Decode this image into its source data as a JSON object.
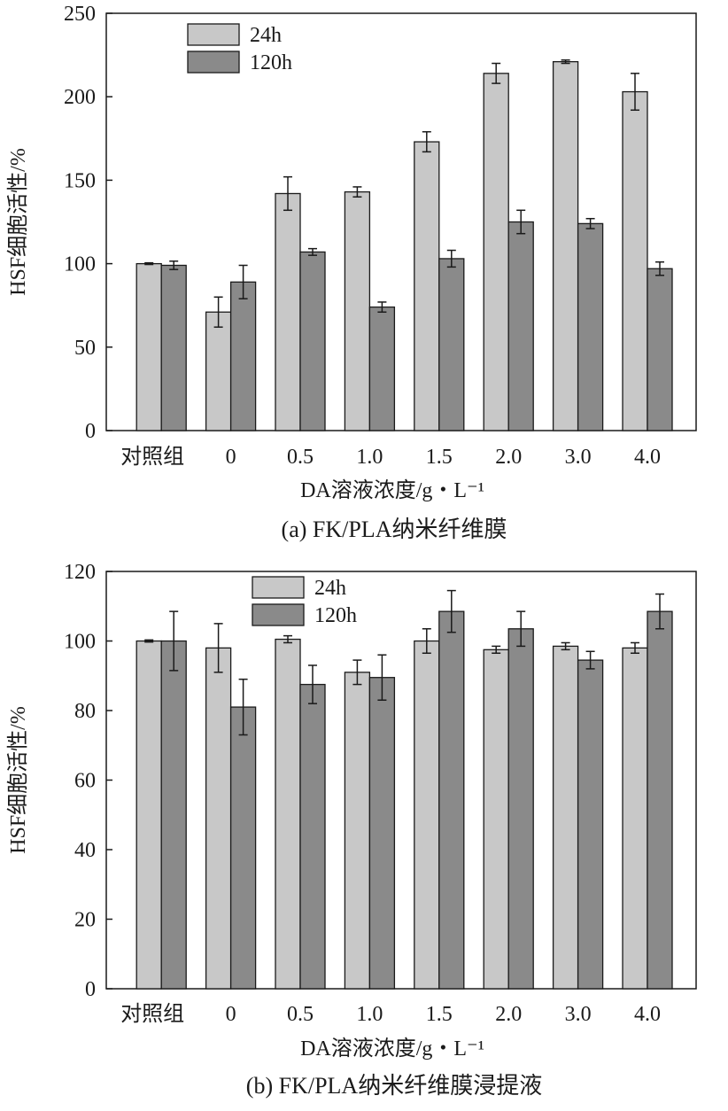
{
  "colors": {
    "series_24h": "#c8c8c8",
    "series_120h": "#8a8a8a",
    "axis": "#1a1a1a"
  },
  "chart_data": [
    {
      "type": "bar",
      "title": "",
      "caption": "(a) FK/PLA纳米纤维膜",
      "xlabel": "DA溶液浓度/g・L⁻¹",
      "ylabel": "HSF细胞活性/%",
      "categories": [
        "对照组",
        "0",
        "0.5",
        "1.0",
        "1.5",
        "2.0",
        "3.0",
        "4.0"
      ],
      "ylim": [
        0,
        250
      ],
      "yticks": [
        0,
        50,
        100,
        150,
        200,
        250
      ],
      "legend": "top-left",
      "series": [
        {
          "name": "24h",
          "values": [
            100,
            71,
            142,
            143,
            173,
            214,
            221,
            203
          ],
          "errors": [
            0.5,
            9,
            10,
            3,
            6,
            6,
            1,
            11
          ]
        },
        {
          "name": "120h",
          "values": [
            99,
            89,
            107,
            74,
            103,
            125,
            124,
            97
          ],
          "errors": [
            2.5,
            10,
            2,
            3,
            5,
            7,
            3,
            4
          ]
        }
      ]
    },
    {
      "type": "bar",
      "title": "",
      "caption": "(b) FK/PLA纳米纤维膜浸提液",
      "xlabel": "DA溶液浓度/g・L⁻¹",
      "ylabel": "HSF细胞活性/%",
      "categories": [
        "对照组",
        "0",
        "0.5",
        "1.0",
        "1.5",
        "2.0",
        "3.0",
        "4.0"
      ],
      "ylim": [
        0,
        120
      ],
      "yticks": [
        0,
        20,
        40,
        60,
        80,
        100,
        120
      ],
      "legend": "top-left",
      "series": [
        {
          "name": "24h",
          "values": [
            100,
            98,
            100.5,
            91,
            100,
            97.5,
            98.5,
            98
          ],
          "errors": [
            0.3,
            7,
            1,
            3.5,
            3.5,
            1,
            1,
            1.5
          ]
        },
        {
          "name": "120h",
          "values": [
            100,
            81,
            87.5,
            89.5,
            108.5,
            103.5,
            94.5,
            108.5
          ],
          "errors": [
            8.5,
            8,
            5.5,
            6.5,
            6,
            5,
            2.5,
            5
          ]
        }
      ]
    }
  ]
}
